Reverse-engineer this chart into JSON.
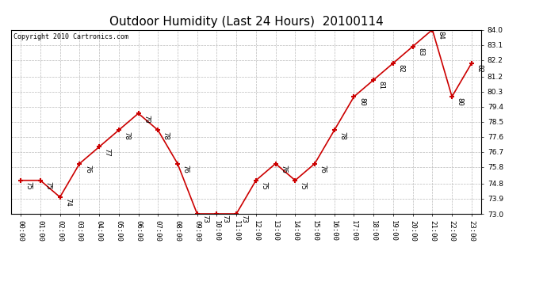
{
  "title": "Outdoor Humidity (Last 24 Hours)  20100114",
  "copyright": "Copyright 2010 Cartronics.com",
  "hours": [
    0,
    1,
    2,
    3,
    4,
    5,
    6,
    7,
    8,
    9,
    10,
    11,
    12,
    13,
    14,
    15,
    16,
    17,
    18,
    19,
    20,
    21,
    22,
    23
  ],
  "values": [
    75,
    75,
    74,
    76,
    77,
    78,
    79,
    78,
    76,
    73,
    73,
    73,
    75,
    76,
    75,
    76,
    78,
    80,
    81,
    82,
    83,
    84,
    80,
    82
  ],
  "xlabels": [
    "00:00",
    "01:00",
    "02:00",
    "03:00",
    "04:00",
    "05:00",
    "06:00",
    "07:00",
    "08:00",
    "09:00",
    "10:00",
    "11:00",
    "12:00",
    "13:00",
    "14:00",
    "15:00",
    "16:00",
    "17:00",
    "18:00",
    "19:00",
    "20:00",
    "21:00",
    "22:00",
    "23:00"
  ],
  "ylim": [
    73.0,
    84.0
  ],
  "yticks": [
    73.0,
    73.9,
    74.8,
    75.8,
    76.7,
    77.6,
    78.5,
    79.4,
    80.3,
    81.2,
    82.2,
    83.1,
    84.0
  ],
  "line_color": "#cc0000",
  "marker_color": "#cc0000",
  "bg_color": "#ffffff",
  "grid_color": "#bbbbbb",
  "title_fontsize": 11,
  "tick_fontsize": 6.5,
  "annot_fontsize": 6.5
}
